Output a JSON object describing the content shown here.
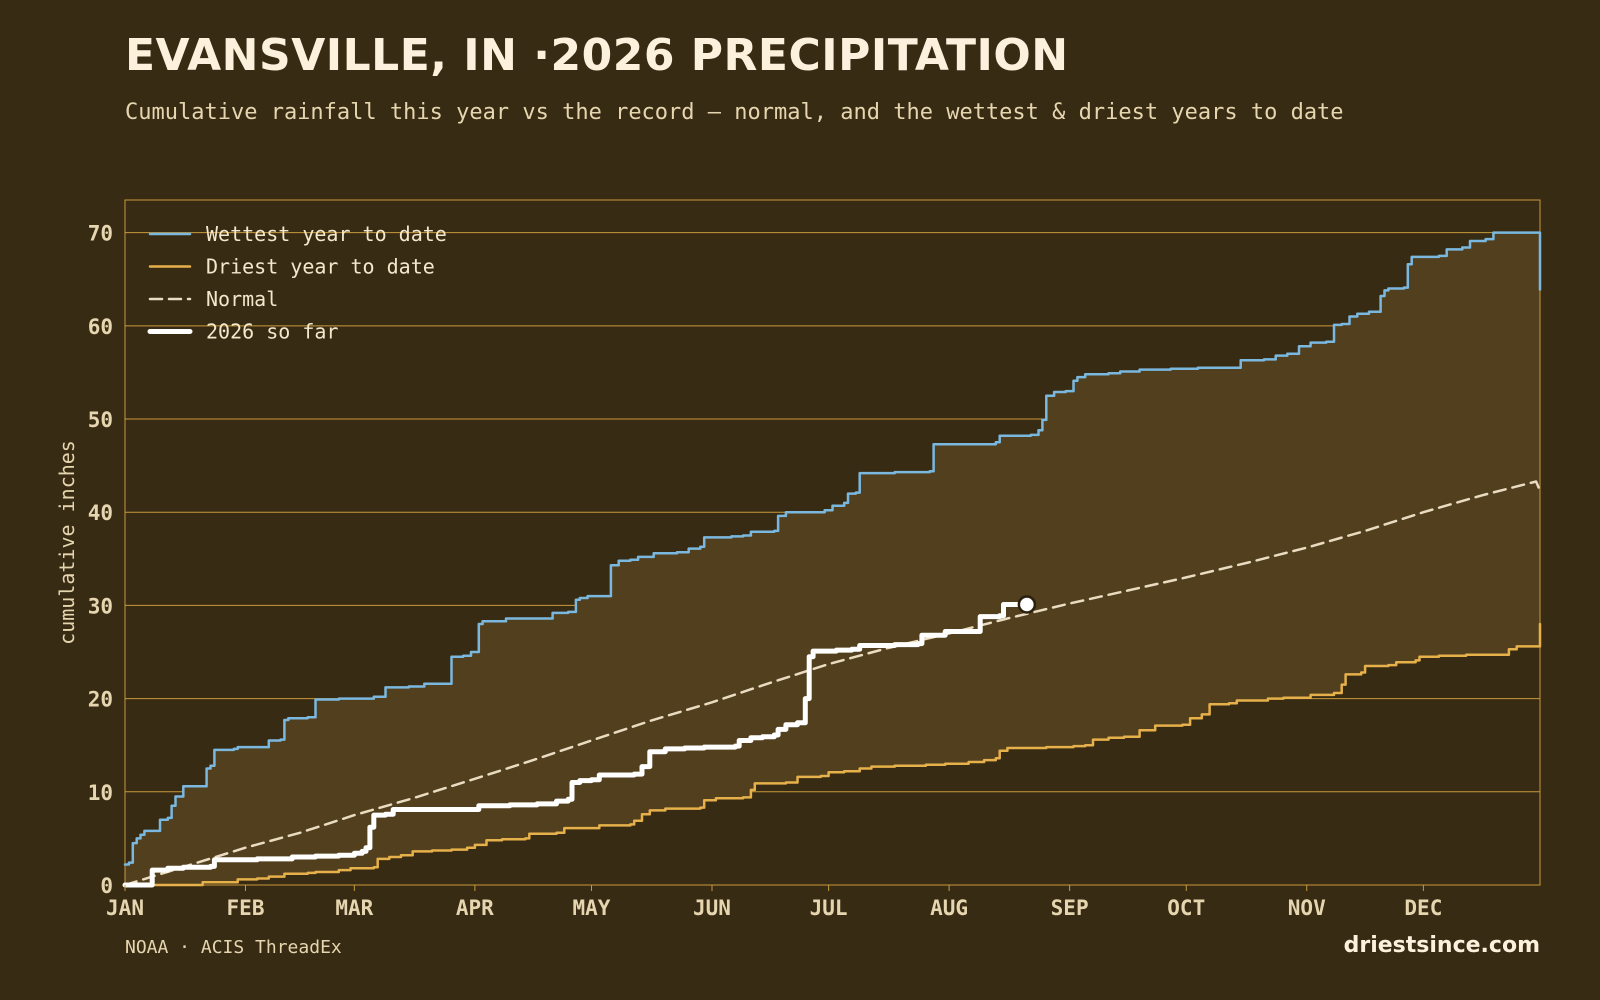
{
  "header": {
    "title": "EVANSVILLE, IN ·2026 PRECIPITATION",
    "subtitle": "Cumulative rainfall this year vs the record — normal, and the wettest & driest years to date"
  },
  "footer": {
    "source": "NOAA · ACIS ThreadEx",
    "brand": "driestsince.com"
  },
  "colors": {
    "background": "#382b13",
    "band_fill": "#523f1e",
    "grid": "#c99a3c",
    "wettest": "#7ab8e0",
    "driest": "#e6b04a",
    "normal": "#e9dcc0",
    "current": "#ffffff"
  },
  "chart_data": {
    "type": "line",
    "title": "EVANSVILLE, IN ·2026 PRECIPITATION",
    "ylabel": "cumulative inches",
    "xlabel": "",
    "ylim": [
      0,
      73.5
    ],
    "yticks": [
      0,
      10,
      20,
      30,
      40,
      50,
      60,
      70
    ],
    "xlim": [
      1,
      365
    ],
    "x_unit": "day of year",
    "months": [
      {
        "label": "JAN",
        "day": 1
      },
      {
        "label": "FEB",
        "day": 32
      },
      {
        "label": "MAR",
        "day": 60
      },
      {
        "label": "APR",
        "day": 91
      },
      {
        "label": "MAY",
        "day": 121
      },
      {
        "label": "JUN",
        "day": 152
      },
      {
        "label": "JUL",
        "day": 182
      },
      {
        "label": "AUG",
        "day": 213
      },
      {
        "label": "SEP",
        "day": 244
      },
      {
        "label": "OCT",
        "day": 274
      },
      {
        "label": "NOV",
        "day": 305
      },
      {
        "label": "DEC",
        "day": 335
      }
    ],
    "grid": "horizontal",
    "legend": {
      "position": "top-left",
      "items": [
        {
          "key": "wettest",
          "label": "Wettest year to date"
        },
        {
          "key": "driest",
          "label": "Driest year to date"
        },
        {
          "key": "normal",
          "label": "Normal"
        },
        {
          "key": "current",
          "label": "2026 so far"
        }
      ]
    },
    "series": [
      {
        "key": "wettest",
        "name": "Wettest year to date",
        "style": "step",
        "points": [
          [
            1,
            2.2
          ],
          [
            2,
            2.4
          ],
          [
            3,
            4.5
          ],
          [
            4,
            5.0
          ],
          [
            5,
            5.4
          ],
          [
            6,
            5.8
          ],
          [
            9,
            5.8
          ],
          [
            10,
            7.0
          ],
          [
            12,
            7.2
          ],
          [
            13,
            8.5
          ],
          [
            14,
            9.5
          ],
          [
            16,
            10.6
          ],
          [
            21,
            10.6
          ],
          [
            22,
            12.5
          ],
          [
            23,
            12.8
          ],
          [
            24,
            14.5
          ],
          [
            29,
            14.6
          ],
          [
            30,
            14.8
          ],
          [
            37,
            14.8
          ],
          [
            38,
            15.5
          ],
          [
            41,
            15.6
          ],
          [
            42,
            17.7
          ],
          [
            43,
            17.9
          ],
          [
            48,
            18.0
          ],
          [
            50,
            19.9
          ],
          [
            56,
            20.0
          ],
          [
            65,
            20.2
          ],
          [
            68,
            21.2
          ],
          [
            74,
            21.3
          ],
          [
            78,
            21.6
          ],
          [
            84,
            21.6
          ],
          [
            85,
            24.5
          ],
          [
            88,
            24.6
          ],
          [
            90,
            25.0
          ],
          [
            92,
            28.0
          ],
          [
            93,
            28.3
          ],
          [
            97,
            28.3
          ],
          [
            99,
            28.6
          ],
          [
            108,
            28.6
          ],
          [
            111,
            29.2
          ],
          [
            115,
            29.3
          ],
          [
            117,
            30.6
          ],
          [
            118,
            30.8
          ],
          [
            120,
            31.0
          ],
          [
            125,
            31.0
          ],
          [
            126,
            34.3
          ],
          [
            128,
            34.8
          ],
          [
            131,
            34.9
          ],
          [
            133,
            35.2
          ],
          [
            137,
            35.6
          ],
          [
            143,
            35.7
          ],
          [
            146,
            36.1
          ],
          [
            149,
            36.3
          ],
          [
            150,
            37.3
          ],
          [
            157,
            37.4
          ],
          [
            160,
            37.5
          ],
          [
            162,
            37.9
          ],
          [
            168,
            38.0
          ],
          [
            169,
            39.6
          ],
          [
            171,
            40.0
          ],
          [
            181,
            40.2
          ],
          [
            183,
            40.7
          ],
          [
            186,
            41.0
          ],
          [
            187,
            42.0
          ],
          [
            189,
            42.1
          ],
          [
            190,
            44.2
          ],
          [
            199,
            44.3
          ],
          [
            208,
            44.4
          ],
          [
            209,
            47.3
          ],
          [
            219,
            47.3
          ],
          [
            225,
            47.5
          ],
          [
            226,
            48.2
          ],
          [
            234,
            48.3
          ],
          [
            236,
            48.8
          ],
          [
            237,
            49.9
          ],
          [
            238,
            52.5
          ],
          [
            240,
            52.9
          ],
          [
            243,
            53.0
          ],
          [
            245,
            54.1
          ],
          [
            246,
            54.5
          ],
          [
            248,
            54.8
          ],
          [
            254,
            54.9
          ],
          [
            257,
            55.1
          ],
          [
            262,
            55.3
          ],
          [
            270,
            55.4
          ],
          [
            277,
            55.5
          ],
          [
            286,
            55.5
          ],
          [
            288,
            56.3
          ],
          [
            294,
            56.4
          ],
          [
            297,
            56.8
          ],
          [
            300,
            57.0
          ],
          [
            303,
            57.8
          ],
          [
            306,
            58.2
          ],
          [
            310,
            58.3
          ],
          [
            312,
            60.1
          ],
          [
            314,
            60.2
          ],
          [
            316,
            61.0
          ],
          [
            318,
            61.3
          ],
          [
            321,
            61.5
          ],
          [
            324,
            63.2
          ],
          [
            325,
            63.8
          ],
          [
            326,
            64.0
          ],
          [
            330,
            64.1
          ],
          [
            331,
            66.6
          ],
          [
            332,
            67.4
          ],
          [
            339,
            67.5
          ],
          [
            341,
            68.2
          ],
          [
            345,
            68.4
          ],
          [
            347,
            69.1
          ],
          [
            351,
            69.3
          ],
          [
            353,
            70.0
          ],
          [
            364,
            70.0
          ],
          [
            365,
            63.9
          ]
        ]
      },
      {
        "key": "driest",
        "name": "Driest year to date",
        "style": "step",
        "points": [
          [
            1,
            0.0
          ],
          [
            20,
            0.0
          ],
          [
            21,
            0.3
          ],
          [
            29,
            0.3
          ],
          [
            30,
            0.6
          ],
          [
            35,
            0.7
          ],
          [
            38,
            0.9
          ],
          [
            42,
            1.2
          ],
          [
            48,
            1.3
          ],
          [
            50,
            1.4
          ],
          [
            56,
            1.6
          ],
          [
            59,
            1.8
          ],
          [
            65,
            1.9
          ],
          [
            66,
            2.8
          ],
          [
            69,
            3.0
          ],
          [
            72,
            3.2
          ],
          [
            75,
            3.6
          ],
          [
            80,
            3.7
          ],
          [
            85,
            3.8
          ],
          [
            89,
            4.0
          ],
          [
            91,
            4.3
          ],
          [
            94,
            4.8
          ],
          [
            98,
            4.9
          ],
          [
            104,
            5.0
          ],
          [
            105,
            5.5
          ],
          [
            112,
            5.6
          ],
          [
            114,
            6.1
          ],
          [
            121,
            6.1
          ],
          [
            123,
            6.4
          ],
          [
            131,
            6.5
          ],
          [
            132,
            6.9
          ],
          [
            134,
            7.6
          ],
          [
            136,
            8.0
          ],
          [
            140,
            8.2
          ],
          [
            149,
            8.3
          ],
          [
            150,
            9.1
          ],
          [
            153,
            9.3
          ],
          [
            160,
            9.4
          ],
          [
            162,
            10.2
          ],
          [
            163,
            10.9
          ],
          [
            171,
            11.0
          ],
          [
            174,
            11.6
          ],
          [
            180,
            11.7
          ],
          [
            182,
            12.1
          ],
          [
            186,
            12.2
          ],
          [
            190,
            12.5
          ],
          [
            193,
            12.7
          ],
          [
            199,
            12.8
          ],
          [
            207,
            12.9
          ],
          [
            212,
            13.0
          ],
          [
            218,
            13.2
          ],
          [
            222,
            13.4
          ],
          [
            225,
            13.6
          ],
          [
            226,
            14.4
          ],
          [
            228,
            14.7
          ],
          [
            238,
            14.8
          ],
          [
            245,
            14.9
          ],
          [
            248,
            15.0
          ],
          [
            250,
            15.6
          ],
          [
            254,
            15.8
          ],
          [
            258,
            15.9
          ],
          [
            262,
            16.6
          ],
          [
            266,
            17.1
          ],
          [
            273,
            17.2
          ],
          [
            275,
            17.9
          ],
          [
            278,
            18.3
          ],
          [
            280,
            19.4
          ],
          [
            285,
            19.5
          ],
          [
            287,
            19.8
          ],
          [
            295,
            20.0
          ],
          [
            299,
            20.1
          ],
          [
            306,
            20.4
          ],
          [
            312,
            20.6
          ],
          [
            314,
            21.5
          ],
          [
            315,
            22.6
          ],
          [
            319,
            22.8
          ],
          [
            320,
            23.5
          ],
          [
            326,
            23.6
          ],
          [
            328,
            23.9
          ],
          [
            333,
            24.1
          ],
          [
            334,
            24.5
          ],
          [
            339,
            24.6
          ],
          [
            346,
            24.7
          ],
          [
            356,
            24.7
          ],
          [
            357,
            25.3
          ],
          [
            359,
            25.6
          ],
          [
            364,
            25.6
          ],
          [
            365,
            28.0
          ]
        ]
      },
      {
        "key": "normal",
        "name": "Normal",
        "style": "linear",
        "points": [
          [
            1,
            0.0
          ],
          [
            15,
            1.8
          ],
          [
            32,
            4.0
          ],
          [
            46,
            5.6
          ],
          [
            60,
            7.5
          ],
          [
            75,
            9.3
          ],
          [
            91,
            11.4
          ],
          [
            106,
            13.4
          ],
          [
            121,
            15.5
          ],
          [
            136,
            17.6
          ],
          [
            152,
            19.6
          ],
          [
            167,
            21.7
          ],
          [
            182,
            23.7
          ],
          [
            197,
            25.4
          ],
          [
            213,
            27.0
          ],
          [
            228,
            28.6
          ],
          [
            244,
            30.2
          ],
          [
            259,
            31.6
          ],
          [
            274,
            33.0
          ],
          [
            290,
            34.6
          ],
          [
            305,
            36.2
          ],
          [
            320,
            38.0
          ],
          [
            335,
            40.0
          ],
          [
            350,
            41.8
          ],
          [
            364,
            43.3
          ],
          [
            365,
            42.3
          ]
        ]
      },
      {
        "key": "current",
        "name": "2026 so far",
        "style": "step",
        "points": [
          [
            1,
            0.0
          ],
          [
            7,
            0.0
          ],
          [
            8,
            1.6
          ],
          [
            12,
            1.8
          ],
          [
            16,
            1.9
          ],
          [
            23,
            2.0
          ],
          [
            24,
            2.7
          ],
          [
            30,
            2.7
          ],
          [
            35,
            2.8
          ],
          [
            42,
            2.8
          ],
          [
            44,
            3.0
          ],
          [
            50,
            3.1
          ],
          [
            56,
            3.2
          ],
          [
            60,
            3.4
          ],
          [
            62,
            3.6
          ],
          [
            63,
            4.0
          ],
          [
            64,
            6.2
          ],
          [
            65,
            7.5
          ],
          [
            68,
            7.6
          ],
          [
            70,
            8.1
          ],
          [
            77,
            8.1
          ],
          [
            85,
            8.1
          ],
          [
            92,
            8.5
          ],
          [
            100,
            8.6
          ],
          [
            107,
            8.7
          ],
          [
            112,
            9.0
          ],
          [
            115,
            9.2
          ],
          [
            116,
            11.0
          ],
          [
            118,
            11.2
          ],
          [
            121,
            11.3
          ],
          [
            123,
            11.8
          ],
          [
            132,
            11.9
          ],
          [
            134,
            12.7
          ],
          [
            136,
            14.3
          ],
          [
            140,
            14.6
          ],
          [
            145,
            14.7
          ],
          [
            150,
            14.8
          ],
          [
            158,
            14.9
          ],
          [
            159,
            15.5
          ],
          [
            162,
            15.8
          ],
          [
            165,
            15.9
          ],
          [
            168,
            16.1
          ],
          [
            169,
            16.7
          ],
          [
            171,
            17.2
          ],
          [
            174,
            17.4
          ],
          [
            176,
            20.0
          ],
          [
            177,
            24.5
          ],
          [
            178,
            25.1
          ],
          [
            184,
            25.2
          ],
          [
            188,
            25.3
          ],
          [
            190,
            25.7
          ],
          [
            199,
            25.8
          ],
          [
            205,
            25.9
          ],
          [
            206,
            26.8
          ],
          [
            210,
            26.8
          ],
          [
            212,
            27.2
          ],
          [
            220,
            27.2
          ],
          [
            221,
            28.8
          ],
          [
            226,
            28.9
          ],
          [
            227,
            30.1
          ],
          [
            233,
            30.1
          ]
        ]
      }
    ],
    "current_marker": {
      "day": 233,
      "value": 30.1
    }
  }
}
